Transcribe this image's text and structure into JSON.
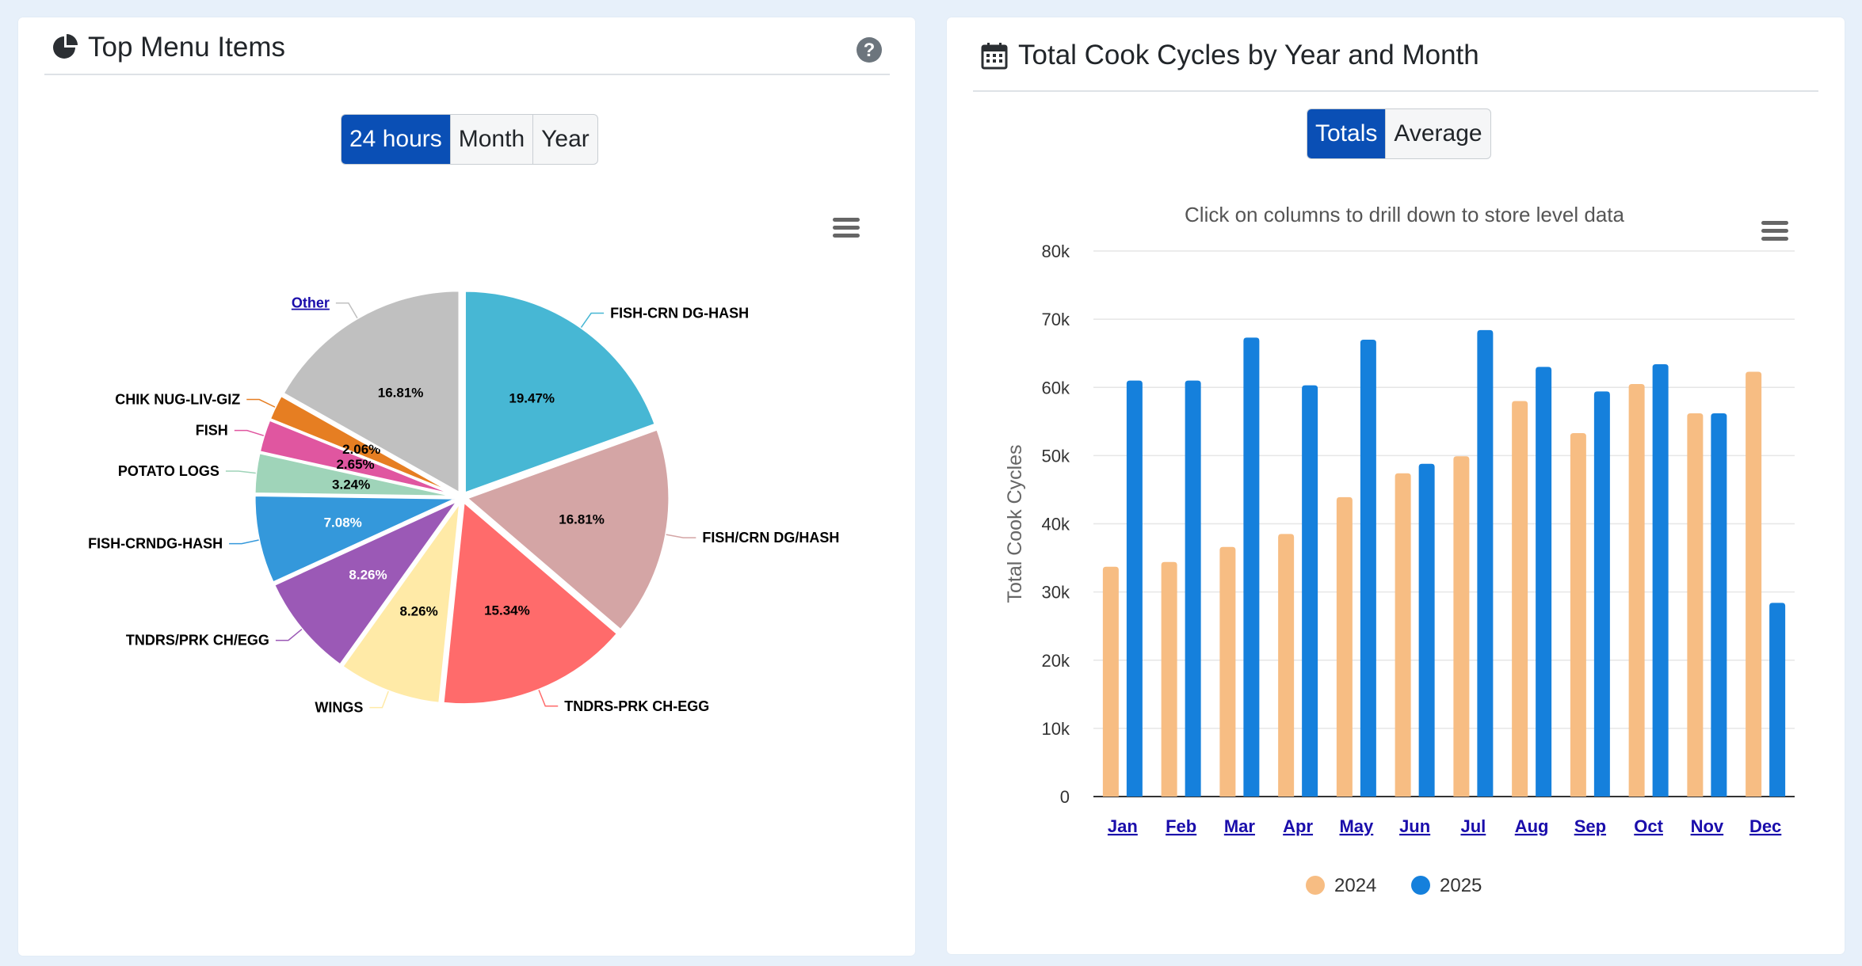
{
  "left_panel": {
    "title": "Top Menu Items",
    "icon": "pie-chart-icon",
    "help_icon": "question-circle-icon",
    "tabs": [
      {
        "label": "24 hours",
        "active": true
      },
      {
        "label": "Month",
        "active": false
      },
      {
        "label": "Year",
        "active": false
      }
    ],
    "menu_icon": "hamburger-menu-icon"
  },
  "right_panel": {
    "title": "Total Cook Cycles by Year and Month",
    "icon": "calendar-icon",
    "tabs": [
      {
        "label": "Totals",
        "active": true
      },
      {
        "label": "Average",
        "active": false
      }
    ],
    "menu_icon": "hamburger-menu-icon"
  },
  "chart_data": [
    {
      "type": "pie",
      "title": "",
      "slices": [
        {
          "label": "FISH-CRN DG-HASH",
          "value": 19.47,
          "display": "19.47%",
          "color": "#47b7d4"
        },
        {
          "label": "FISH/CRN DG/HASH",
          "value": 16.81,
          "display": "16.81%",
          "color": "#d4a5a5"
        },
        {
          "label": "TNDRS-PRK CH-EGG",
          "value": 15.34,
          "display": "15.34%",
          "color": "#ff6b6b"
        },
        {
          "label": "WINGS",
          "value": 8.26,
          "display": "8.26%",
          "color": "#ffeaa7"
        },
        {
          "label": "TNDRS/PRK CH/EGG",
          "value": 8.26,
          "display": "8.26%",
          "color": "#9b59b6"
        },
        {
          "label": "FISH-CRNDG-HASH",
          "value": 7.08,
          "display": "7.08%",
          "color": "#3498db"
        },
        {
          "label": "POTATO LOGS",
          "value": 3.24,
          "display": "3.24%",
          "color": "#9fd4b9"
        },
        {
          "label": "FISH",
          "value": 2.65,
          "display": "2.65%",
          "color": "#e056a0"
        },
        {
          "label": "CHIK NUG-LIV-GIZ",
          "value": 2.06,
          "display": "2.06%",
          "color": "#e67e22"
        },
        {
          "label": "Other",
          "value": 16.81,
          "display": "16.81%",
          "color": "#c0c0c0",
          "link": true
        }
      ]
    },
    {
      "type": "bar",
      "title": "Click on columns to drill down to store level data",
      "ylabel": "Total Cook Cycles",
      "xlabel": "",
      "ylim": [
        0,
        80000
      ],
      "yticks": [
        {
          "value": 0,
          "label": "0"
        },
        {
          "value": 10000,
          "label": "10k"
        },
        {
          "value": 20000,
          "label": "20k"
        },
        {
          "value": 30000,
          "label": "30k"
        },
        {
          "value": 40000,
          "label": "40k"
        },
        {
          "value": 50000,
          "label": "50k"
        },
        {
          "value": 60000,
          "label": "60k"
        },
        {
          "value": 70000,
          "label": "70k"
        },
        {
          "value": 80000,
          "label": "80k"
        }
      ],
      "categories": [
        "Jan",
        "Feb",
        "Mar",
        "Apr",
        "May",
        "Jun",
        "Jul",
        "Aug",
        "Sep",
        "Oct",
        "Nov",
        "Dec"
      ],
      "series": [
        {
          "name": "2024",
          "color": "#f7bd83",
          "values": [
            33700,
            34400,
            36600,
            38500,
            43900,
            47400,
            49900,
            58000,
            53300,
            60500,
            56200,
            62300
          ]
        },
        {
          "name": "2025",
          "color": "#1580dc",
          "values": [
            61000,
            61000,
            67300,
            60300,
            67000,
            48800,
            68400,
            63000,
            59400,
            63400,
            56200,
            28400
          ]
        }
      ],
      "legend_position": "bottom",
      "grid": true
    }
  ]
}
